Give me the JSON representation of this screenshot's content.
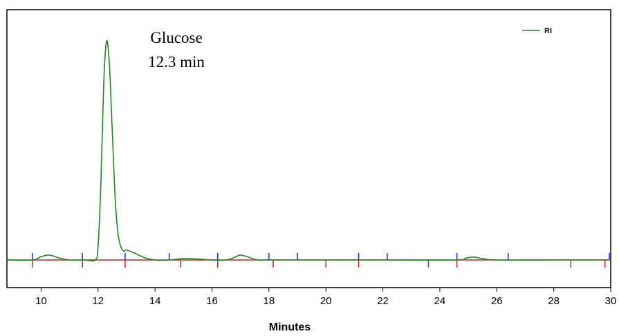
{
  "chart_data": {
    "type": "line",
    "title": "",
    "xlabel": "Minutes",
    "ylabel": "",
    "xlim": [
      8.8,
      30
    ],
    "ylim": [
      -0.12,
      1.0
    ],
    "x_ticks": [
      10,
      12,
      14,
      16,
      18,
      20,
      22,
      24,
      26,
      28,
      30
    ],
    "x_tick_labels": [
      "10",
      "12",
      "14",
      "16",
      "18",
      "20",
      "22",
      "24",
      "26",
      "28",
      "30"
    ],
    "legend": {
      "position": "top-right",
      "entries": [
        {
          "label": "RI",
          "color": "#1a8a1a"
        }
      ]
    },
    "annotations": [
      {
        "lines": [
          "Glucose",
          "12.3 min"
        ]
      }
    ],
    "series": [
      {
        "name": "RI",
        "color": "#1a8a1a",
        "x": [
          8.8,
          9.7,
          10.0,
          10.3,
          10.6,
          11.0,
          11.5,
          11.9,
          12.0,
          12.1,
          12.2,
          12.3,
          12.4,
          12.5,
          12.6,
          12.7,
          12.8,
          12.9,
          13.0,
          13.3,
          13.6,
          14.0,
          14.5,
          15.0,
          15.5,
          16.0,
          16.5,
          16.8,
          17.0,
          17.3,
          17.6,
          18.0,
          20.0,
          22.0,
          24.6,
          24.9,
          25.2,
          25.5,
          26.0,
          28.0,
          30.0
        ],
        "y": [
          0.0,
          0.0,
          0.015,
          0.022,
          0.01,
          0.0,
          0.0,
          0.0,
          0.06,
          0.35,
          0.8,
          0.99,
          0.88,
          0.58,
          0.28,
          0.12,
          0.06,
          0.04,
          0.045,
          0.03,
          0.012,
          0.0,
          0.0,
          0.006,
          0.004,
          0.0,
          0.0,
          0.012,
          0.022,
          0.012,
          0.0,
          0.0,
          0.0,
          0.0,
          0.0,
          0.008,
          0.013,
          0.006,
          0.0,
          0.0,
          0.0
        ]
      }
    ],
    "baseline_color": "#cc2222",
    "integration_marks": {
      "blue": {
        "color": "#2222cc",
        "direction": "up",
        "x": [
          9.7,
          11.45,
          12.95,
          14.5,
          16.2,
          18.0,
          19.0,
          21.15,
          22.15,
          24.6,
          26.4,
          29.95
        ]
      },
      "red": {
        "color": "#cc2222",
        "direction": "down",
        "x": [
          9.7,
          11.45,
          12.95,
          14.9,
          16.2,
          18.15,
          20.0,
          21.15,
          23.6,
          24.6,
          28.6,
          29.8
        ]
      }
    }
  }
}
